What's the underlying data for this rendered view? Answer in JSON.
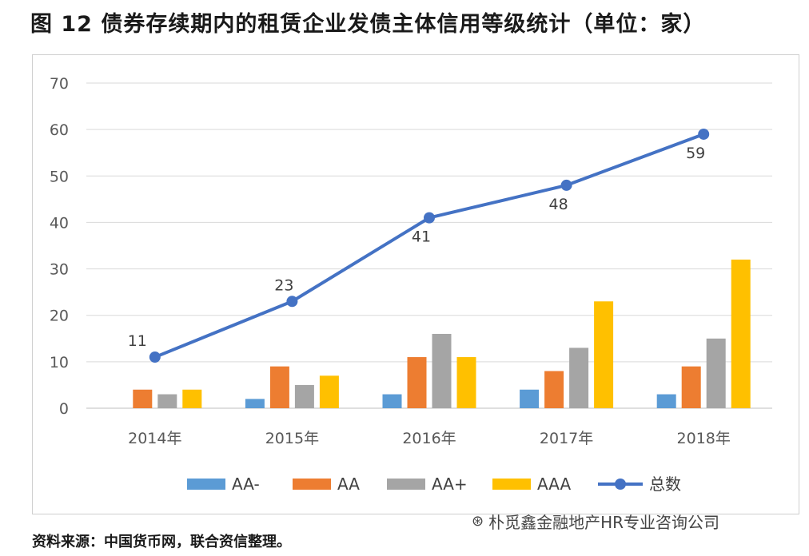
{
  "header": {
    "title": "图 12    债券存续期内的租赁企业发债主体信用等级统计（单位：家）"
  },
  "footer": {
    "source": "资料来源：中国货币网，联合资信整理。",
    "watermark": "朴觅鑫金融地产HR专业咨询公司"
  },
  "chart_data": {
    "type": "bar",
    "title": "债券存续期内的租赁企业发债主体信用等级统计（单位：家）",
    "categories": [
      "2014年",
      "2015年",
      "2016年",
      "2017年",
      "2018年"
    ],
    "ylim": [
      0,
      70
    ],
    "yticks": [
      0,
      10,
      20,
      30,
      40,
      50,
      60,
      70
    ],
    "grid": true,
    "legend_position": "bottom",
    "series": [
      {
        "name": "AA-",
        "type": "bar",
        "color": "#5b9bd5",
        "values": [
          0,
          2,
          3,
          4,
          3
        ]
      },
      {
        "name": "AA",
        "type": "bar",
        "color": "#ed7d31",
        "values": [
          4,
          9,
          11,
          8,
          9
        ]
      },
      {
        "name": "AA+",
        "type": "bar",
        "color": "#a5a5a5",
        "values": [
          3,
          5,
          16,
          13,
          15
        ]
      },
      {
        "name": "AAA",
        "type": "bar",
        "color": "#ffc000",
        "values": [
          4,
          7,
          11,
          23,
          32
        ]
      },
      {
        "name": "总数",
        "type": "line",
        "color": "#4472c4",
        "values": [
          11,
          23,
          41,
          48,
          59
        ],
        "labels": [
          "11",
          "23",
          "41",
          "48",
          "59"
        ]
      }
    ]
  }
}
